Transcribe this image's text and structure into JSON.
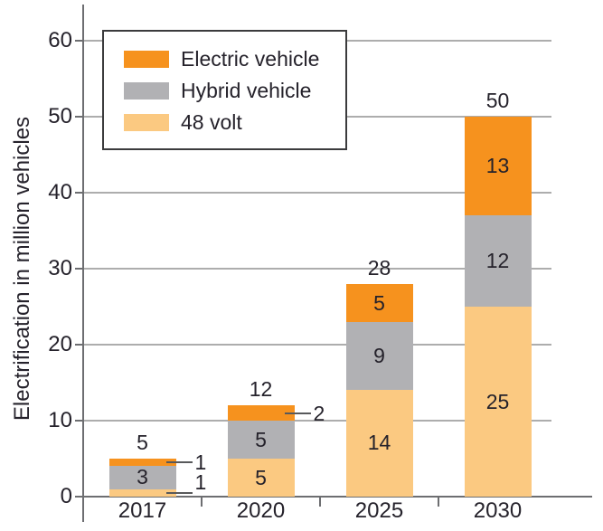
{
  "chart_data": {
    "type": "bar",
    "stacked": true,
    "title": "",
    "ylabel": "Electrification in million vehicles",
    "xlabel": "",
    "ylim": [
      0,
      60
    ],
    "yticks": [
      0,
      10,
      20,
      30,
      40,
      50,
      60
    ],
    "categories": [
      "2017",
      "2020",
      "2025",
      "2030"
    ],
    "series": [
      {
        "name": "48 volt",
        "color": "#FBC981",
        "values": [
          1,
          5,
          14,
          25
        ]
      },
      {
        "name": "Hybrid vehicle",
        "color": "#B1B1B4",
        "values": [
          3,
          5,
          9,
          12
        ]
      },
      {
        "name": "Electric vehicle",
        "color": "#F6921E",
        "values": [
          1,
          2,
          5,
          13
        ]
      }
    ],
    "totals": [
      5,
      12,
      28,
      50
    ],
    "legend": [
      "Electric vehicle",
      "Hybrid vehicle",
      "48 volt"
    ],
    "legend_position": "upper-left",
    "grid": "horizontal"
  },
  "colors": {
    "electric_vehicle": "#F6921E",
    "hybrid_vehicle": "#B1B1B4",
    "volt_48": "#FBC981",
    "axis": "#6D6E71",
    "gridline": "#ADADAD",
    "callout_line": "#58595B",
    "text": "#25222B",
    "legend_border": "#3B3B3D",
    "background": "#FFFFFF"
  }
}
